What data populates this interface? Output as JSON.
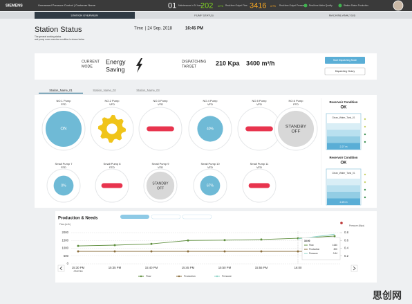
{
  "header": {
    "brand": "SIEMENS",
    "app": "Unmanned Pressure Control | Customer Name",
    "maintenance": {
      "value": "01",
      "label": "Maintenance in 24 hours"
    },
    "flow": {
      "value": "202",
      "unit": "m³/h",
      "label": "Real-time Output Flow"
    },
    "pressure": {
      "value": "3416",
      "unit": "m³/h",
      "label": "Real-time Output Pressure"
    },
    "quality": {
      "label": "Real-time Water Quality"
    },
    "status": {
      "label": "Station Status Production"
    }
  },
  "tabs": [
    "STATION OVERVIEW",
    "PUMP STATUS",
    "MACHINE ANALYSIS"
  ],
  "page": {
    "title": "Station Status",
    "subtitle": [
      "The general working status",
      "and pump room overview condition is shown below"
    ],
    "time_label": "Time",
    "date": "| 24 Sep. 2018",
    "time": "16:45 PM"
  },
  "mode": {
    "current_mode_label": [
      "CURRENT",
      "MODE"
    ],
    "current_mode": [
      "Energy",
      "Saving"
    ],
    "target_label": [
      "DISPATCHING",
      "TARGET"
    ],
    "pressure": "210 Kpa",
    "flow": "3400 m³/h",
    "buttons": [
      "Start Dispatching Mode",
      "Dispatching History"
    ]
  },
  "stations": [
    "Station_Name_01",
    "Station_Name_02",
    "Station_Name_03"
  ],
  "pumps": [
    {
      "name": "NO.1 Pump",
      "kind": "FFD",
      "state": "on",
      "text": "ON"
    },
    {
      "name": "NO.2 Pump",
      "kind": "VFD",
      "state": "running"
    },
    {
      "name": "NO.3 Pump",
      "kind": "VFD",
      "state": "fault"
    },
    {
      "name": "NO.4 Pump",
      "kind": "VFD",
      "state": "percent",
      "text": "40%"
    },
    {
      "name": "NO.5 Pump",
      "kind": "VFD",
      "state": "fault"
    },
    {
      "name": "NO.6 Pump",
      "kind": "FFD",
      "state": "standby",
      "text": [
        "STANDBY",
        "OFF"
      ]
    }
  ],
  "small_pumps": [
    {
      "name": "Small Pump 7",
      "kind": "FFD",
      "state": "percent",
      "text": "0%"
    },
    {
      "name": "Small Pump 8",
      "kind": "FFD",
      "state": "fault"
    },
    {
      "name": "Small Pump 9",
      "kind": "VFD",
      "state": "standby",
      "text": [
        "STANDBY",
        "OFF"
      ]
    },
    {
      "name": "Small Pump 10",
      "kind": "VFD",
      "state": "percent",
      "text": "67%"
    },
    {
      "name": "Small Pump 11",
      "kind": "VFD",
      "state": "fault"
    }
  ],
  "reservoirs": [
    {
      "title": "Reservoir Condition",
      "status": "OK",
      "tank": "Clean_Water_Tank_01",
      "level": "2.27 m"
    },
    {
      "title": "Reservoir Condition",
      "status": "OK",
      "tank": "Clean_Water_Tank_01",
      "level": "2.25 m"
    }
  ],
  "chart_data": {
    "type": "line",
    "title": "Production & Needs",
    "y_label": "Flow (m³/h)",
    "y2_label": "Pressure (Mpa)",
    "categories": [
      "15:30 PM",
      "15:35 PM",
      "15:40 PM",
      "15:45 PM",
      "15:50 PM",
      "15:55 PM",
      "16:00",
      null
    ],
    "x_date": "07/07/18",
    "ylim": [
      0,
      2000
    ],
    "yticks": [
      0,
      500,
      1000,
      1500,
      2000
    ],
    "y2lim": [
      0,
      0.8
    ],
    "y2ticks": [
      0.2,
      0.4,
      0.6,
      0.8
    ],
    "grid": true,
    "series": [
      {
        "name": "Flow",
        "color": "#5f8f3e",
        "values": [
          1150,
          1200,
          1280,
          1500,
          1520,
          1560,
          1640,
          1780
        ]
      },
      {
        "name": "Production",
        "color": "#8a6d3b",
        "values": [
          800,
          800,
          800,
          800,
          800,
          800,
          800,
          800
        ]
      },
      {
        "name": "Pressure",
        "color": "#8fd3c7",
        "axis": "y2",
        "values": [
          null,
          null,
          null,
          null,
          null,
          null,
          0.64,
          0.76
        ]
      }
    ]
  },
  "watermark": "思创网"
}
